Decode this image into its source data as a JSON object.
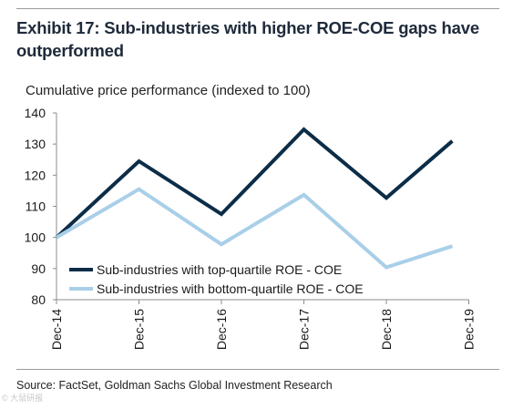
{
  "exhibit": {
    "title": "Exhibit 17: Sub-industries with higher ROE-COE gaps have outperformed",
    "subtitle": "Cumulative price performance (indexed to 100)",
    "source": "Source: FactSet, Goldman Sachs Global Investment Research",
    "watermark": "© 大鼠研报"
  },
  "chart_data": {
    "type": "line",
    "x": [
      "Dec-14",
      "Dec-15",
      "Dec-16",
      "Dec-17",
      "Dec-18",
      "Dec-19"
    ],
    "ylim": [
      80,
      140
    ],
    "yticks": [
      80,
      90,
      100,
      110,
      120,
      130,
      140
    ],
    "grid": false,
    "legend_position": "lower-left",
    "series": [
      {
        "name": "Sub-industries with top-quartile ROE - COE",
        "color": "#0c2d48",
        "points": [
          {
            "x": 0,
            "y": 100
          },
          {
            "x": 1,
            "y": 124.5
          },
          {
            "x": 2,
            "y": 107.5
          },
          {
            "x": 3,
            "y": 134.7
          },
          {
            "x": 4,
            "y": 112.7
          },
          {
            "x": 4.8,
            "y": 131
          }
        ]
      },
      {
        "name": "Sub-industries with bottom-quartile ROE - COE",
        "color": "#a9cfe8",
        "points": [
          {
            "x": 0,
            "y": 100
          },
          {
            "x": 1,
            "y": 115.5
          },
          {
            "x": 2,
            "y": 97.8
          },
          {
            "x": 3,
            "y": 113.7
          },
          {
            "x": 4,
            "y": 90.4
          },
          {
            "x": 4.8,
            "y": 97.2
          }
        ]
      }
    ]
  }
}
